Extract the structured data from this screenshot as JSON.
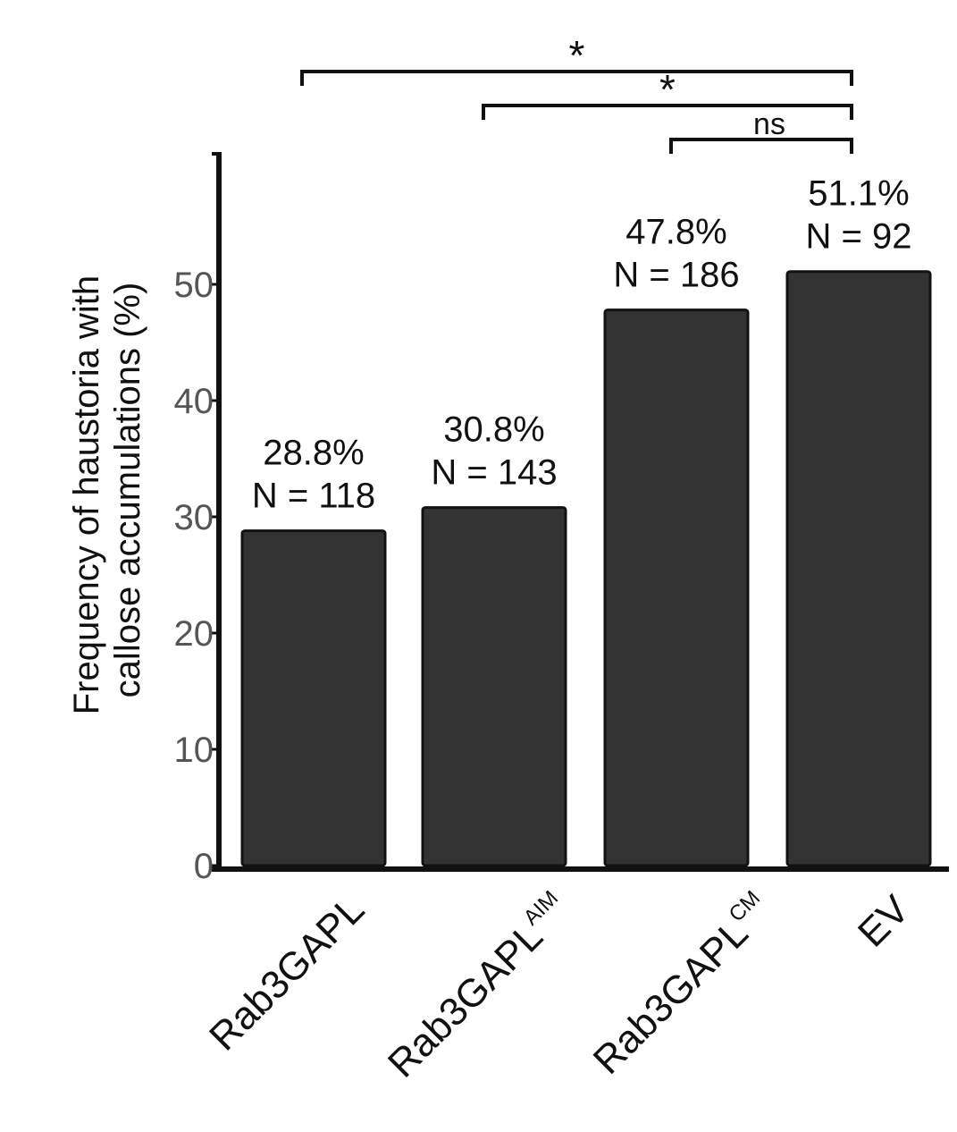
{
  "chart_data": {
    "type": "bar",
    "categories": [
      {
        "base": "Rab3GAPL",
        "sup": ""
      },
      {
        "base": "Rab3GAPL",
        "sup": "AIM"
      },
      {
        "base": "Rab3GAPL",
        "sup": "CM"
      },
      {
        "base": "EV",
        "sup": ""
      }
    ],
    "values": [
      28.8,
      30.8,
      47.8,
      51.1
    ],
    "value_labels": [
      "28.8%",
      "30.8%",
      "47.8%",
      "51.1%"
    ],
    "n_labels": [
      "N = 118",
      "N = 143",
      "N = 186",
      "N = 92"
    ],
    "ylabel_lines": [
      "Frequency of  haustoria with",
      "callose accumulations (%)"
    ],
    "yticks": [
      0,
      10,
      20,
      30,
      40,
      50
    ],
    "ylim": [
      0,
      60
    ],
    "grid": false,
    "bar_color": "#333333",
    "significance": [
      {
        "from": 0,
        "to": 3,
        "label": "*"
      },
      {
        "from": 1,
        "to": 3,
        "label": "*"
      },
      {
        "from": 2,
        "to": 3,
        "label": "ns"
      }
    ]
  }
}
